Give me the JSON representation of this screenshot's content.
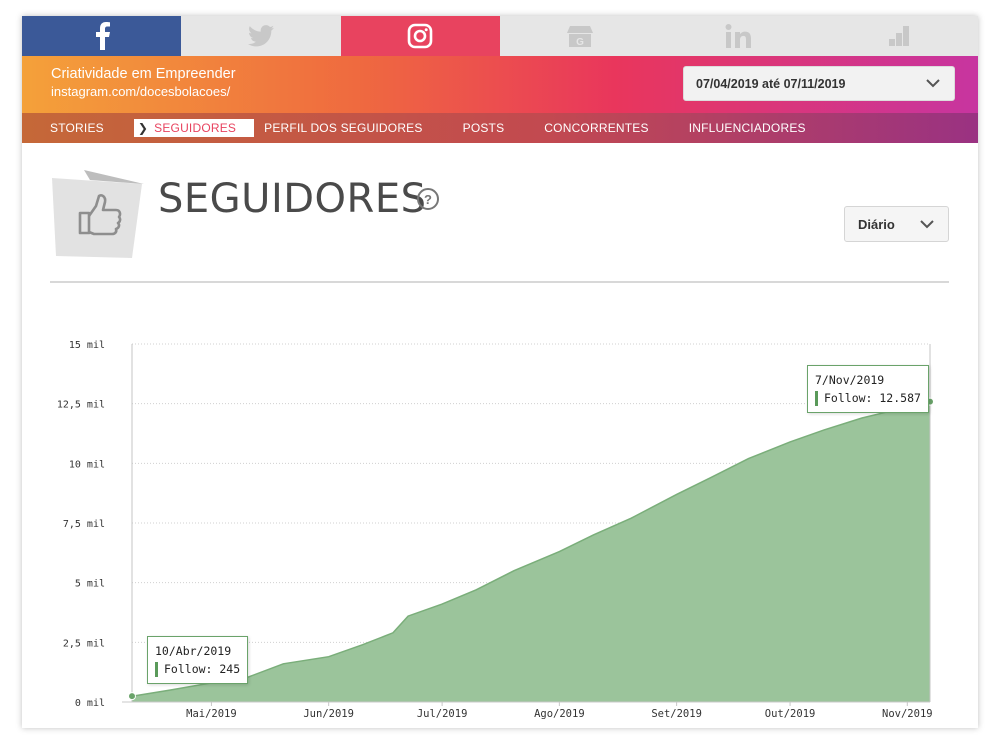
{
  "networks": {
    "tabs": [
      {
        "name": "facebook",
        "icon": "facebook-icon",
        "active": false
      },
      {
        "name": "twitter",
        "icon": "twitter-icon",
        "active": false
      },
      {
        "name": "instagram",
        "icon": "instagram-icon",
        "active": true
      },
      {
        "name": "google-my-business",
        "icon": "store-icon",
        "active": false
      },
      {
        "name": "linkedin",
        "icon": "linkedin-icon",
        "active": false
      },
      {
        "name": "other",
        "icon": "bar-chart-icon",
        "active": false
      }
    ],
    "colors": {
      "facebook": "#3b5998",
      "instagram": "#e8435f",
      "inactive": "#e6e6e6"
    }
  },
  "profile": {
    "name": "Criatividade em Empreender",
    "url": "instagram.com/docesbolacoes/",
    "date_range": "07/04/2019 até 07/11/2019"
  },
  "subnav": {
    "items": [
      "STORIES",
      "SEGUIDORES",
      "PERFIL DOS SEGUIDORES",
      "POSTS",
      "CONCORRENTES",
      "INFLUENCIADORES"
    ],
    "active": "SEGUIDORES"
  },
  "section": {
    "title": "SEGUIDORES",
    "help": "?",
    "period": "Diário"
  },
  "chart_data": {
    "type": "area",
    "series": [
      {
        "name": "Follow",
        "color": "#9bc49b"
      }
    ],
    "y_ticks": [
      "15 mil",
      "12,5 mil",
      "10 mil",
      "7,5 mil",
      "5 mil",
      "2,5 mil",
      "0 mil"
    ],
    "ylim": [
      0,
      15000
    ],
    "x_ticks": [
      "Mai/2019",
      "Jun/2019",
      "Jul/2019",
      "Ago/2019",
      "Set/2019",
      "Out/2019",
      "Nov/2019"
    ],
    "x_range": [
      "2019-04-10",
      "2019-11-07"
    ],
    "points": [
      [
        "2019-04-10",
        245
      ],
      [
        "2019-04-20",
        500
      ],
      [
        "2019-05-01",
        800
      ],
      [
        "2019-05-10",
        1000
      ],
      [
        "2019-05-20",
        1600
      ],
      [
        "2019-06-01",
        1900
      ],
      [
        "2019-06-10",
        2400
      ],
      [
        "2019-06-18",
        2900
      ],
      [
        "2019-06-22",
        3600
      ],
      [
        "2019-07-01",
        4100
      ],
      [
        "2019-07-10",
        4700
      ],
      [
        "2019-07-20",
        5500
      ],
      [
        "2019-08-01",
        6300
      ],
      [
        "2019-08-10",
        7000
      ],
      [
        "2019-08-20",
        7700
      ],
      [
        "2019-09-01",
        8700
      ],
      [
        "2019-09-10",
        9400
      ],
      [
        "2019-09-20",
        10200
      ],
      [
        "2019-10-01",
        10900
      ],
      [
        "2019-10-10",
        11400
      ],
      [
        "2019-10-20",
        11900
      ],
      [
        "2019-11-07",
        12587
      ]
    ],
    "tooltips": [
      {
        "date": "10/Abr/2019",
        "label": "Follow: 245"
      },
      {
        "date": "7/Nov/2019",
        "label": "Follow: 12.587"
      }
    ],
    "grid": true
  }
}
